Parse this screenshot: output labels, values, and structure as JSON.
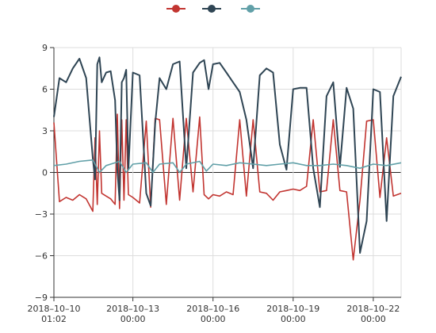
{
  "chart_data": {
    "type": "line",
    "title": "",
    "xlabel": "",
    "ylabel": "",
    "x_start": "2018-10-10 01:02",
    "x_end": "2018-10-23 01:00",
    "ylim": [
      -9,
      9
    ],
    "y_ticks": [
      -9,
      -6,
      -3,
      0,
      3,
      6,
      9
    ],
    "y_tick_labels": [
      "−9",
      "−6",
      "−3",
      "0",
      "3",
      "6",
      "9"
    ],
    "x_ticks": [
      {
        "value": "2018-10-10 01:02",
        "line1": "2018–10–10",
        "line2": "01:02"
      },
      {
        "value": "2018-10-13 00:00",
        "line1": "2018–10–13",
        "line2": "00:00"
      },
      {
        "value": "2018-10-16 00:00",
        "line1": "2018–10–16",
        "line2": "00:00"
      },
      {
        "value": "2018-10-19 00:00",
        "line1": "2018–10–19",
        "line2": "00:00"
      },
      {
        "value": "2018-10-22 00:00",
        "line1": "2018–10–22",
        "line2": "00:00"
      }
    ],
    "grid": true,
    "legend": "top-center",
    "series": [
      {
        "color": "#c23531",
        "x": [
          "2018-10-10 01:00",
          "2018-10-10 06:00",
          "2018-10-10 12:00",
          "2018-10-10 18:00",
          "2018-10-11 00:00",
          "2018-10-11 06:00",
          "2018-10-11 12:00",
          "2018-10-11 14:00",
          "2018-10-11 16:00",
          "2018-10-11 18:00",
          "2018-10-11 20:00",
          "2018-10-12 00:00",
          "2018-10-12 04:00",
          "2018-10-12 08:00",
          "2018-10-12 10:00",
          "2018-10-12 12:00",
          "2018-10-12 14:00",
          "2018-10-12 16:00",
          "2018-10-12 18:00",
          "2018-10-12 20:00",
          "2018-10-13 00:00",
          "2018-10-13 06:00",
          "2018-10-13 12:00",
          "2018-10-13 16:00",
          "2018-10-13 20:00",
          "2018-10-14 00:00",
          "2018-10-14 06:00",
          "2018-10-14 12:00",
          "2018-10-14 18:00",
          "2018-10-15 00:00",
          "2018-10-15 06:00",
          "2018-10-15 12:00",
          "2018-10-15 16:00",
          "2018-10-15 20:00",
          "2018-10-16 00:00",
          "2018-10-16 06:00",
          "2018-10-16 12:00",
          "2018-10-16 18:00",
          "2018-10-17 00:00",
          "2018-10-17 06:00",
          "2018-10-17 12:00",
          "2018-10-17 18:00",
          "2018-10-18 00:00",
          "2018-10-18 06:00",
          "2018-10-18 12:00",
          "2018-10-18 18:00",
          "2018-10-19 00:00",
          "2018-10-19 06:00",
          "2018-10-19 12:00",
          "2018-10-19 18:00",
          "2018-10-20 00:00",
          "2018-10-20 06:00",
          "2018-10-20 12:00",
          "2018-10-20 18:00",
          "2018-10-21 00:00",
          "2018-10-21 06:00",
          "2018-10-21 12:00",
          "2018-10-21 18:00",
          "2018-10-22 00:00",
          "2018-10-22 06:00",
          "2018-10-22 12:00",
          "2018-10-22 18:00",
          "2018-10-23 01:00"
        ],
        "y": [
          3.6,
          -2.1,
          -1.8,
          -2.0,
          -1.6,
          -1.9,
          -2.8,
          2.5,
          -2.3,
          3.0,
          -1.5,
          -1.7,
          -1.9,
          -2.3,
          4.2,
          -2.6,
          3.8,
          -2.0,
          3.8,
          -1.6,
          -1.8,
          -2.2,
          3.7,
          -2.5,
          3.9,
          3.8,
          -2.3,
          3.9,
          -2.0,
          3.9,
          -1.4,
          4.0,
          -1.6,
          -1.9,
          -1.6,
          -1.7,
          -1.4,
          -1.6,
          3.8,
          -1.7,
          3.8,
          -1.4,
          -1.5,
          -2.0,
          -1.4,
          -1.3,
          -1.2,
          -1.3,
          -1.0,
          3.8,
          -1.4,
          -1.3,
          3.8,
          -1.3,
          -1.4,
          -6.3,
          -2.0,
          3.7,
          3.8,
          -1.8,
          2.5,
          -1.7,
          -1.5
        ]
      },
      {
        "color": "#2f4554",
        "x": [
          "2018-10-10 01:00",
          "2018-10-10 06:00",
          "2018-10-10 12:00",
          "2018-10-10 18:00",
          "2018-10-11 00:00",
          "2018-10-11 06:00",
          "2018-10-11 12:00",
          "2018-10-11 14:00",
          "2018-10-11 16:00",
          "2018-10-11 18:00",
          "2018-10-11 20:00",
          "2018-10-12 00:00",
          "2018-10-12 04:00",
          "2018-10-12 08:00",
          "2018-10-12 10:00",
          "2018-10-12 12:00",
          "2018-10-12 14:00",
          "2018-10-12 16:00",
          "2018-10-12 18:00",
          "2018-10-12 20:00",
          "2018-10-13 00:00",
          "2018-10-13 06:00",
          "2018-10-13 12:00",
          "2018-10-13 16:00",
          "2018-10-13 20:00",
          "2018-10-14 00:00",
          "2018-10-14 06:00",
          "2018-10-14 12:00",
          "2018-10-14 18:00",
          "2018-10-15 00:00",
          "2018-10-15 06:00",
          "2018-10-15 12:00",
          "2018-10-15 16:00",
          "2018-10-15 20:00",
          "2018-10-16 00:00",
          "2018-10-16 06:00",
          "2018-10-16 12:00",
          "2018-10-16 18:00",
          "2018-10-17 00:00",
          "2018-10-17 06:00",
          "2018-10-17 12:00",
          "2018-10-17 18:00",
          "2018-10-18 00:00",
          "2018-10-18 06:00",
          "2018-10-18 12:00",
          "2018-10-18 18:00",
          "2018-10-19 00:00",
          "2018-10-19 06:00",
          "2018-10-19 12:00",
          "2018-10-19 18:00",
          "2018-10-20 00:00",
          "2018-10-20 06:00",
          "2018-10-20 12:00",
          "2018-10-20 18:00",
          "2018-10-21 00:00",
          "2018-10-21 06:00",
          "2018-10-21 12:00",
          "2018-10-21 18:00",
          "2018-10-22 00:00",
          "2018-10-22 06:00",
          "2018-10-22 12:00",
          "2018-10-22 18:00",
          "2018-10-23 01:00"
        ],
        "y": [
          4.0,
          6.8,
          6.5,
          7.5,
          8.2,
          6.8,
          1.0,
          -0.5,
          7.8,
          8.3,
          6.5,
          7.2,
          7.3,
          5.2,
          0.2,
          -2.0,
          6.5,
          6.8,
          7.4,
          0.2,
          7.2,
          7.0,
          -1.5,
          -2.4,
          3.5,
          6.8,
          6.0,
          7.8,
          8.0,
          0.3,
          7.2,
          7.9,
          8.1,
          6.0,
          7.8,
          7.9,
          7.2,
          6.5,
          5.8,
          3.8,
          0.3,
          7.0,
          7.5,
          7.2,
          2.0,
          0.2,
          6.0,
          6.1,
          6.1,
          0.3,
          -2.5,
          5.5,
          6.5,
          0.4,
          6.1,
          4.6,
          -5.8,
          -3.5,
          6.0,
          5.8,
          -3.5,
          5.5,
          6.9
        ]
      },
      {
        "color": "#61a0a8",
        "x": [
          "2018-10-10 01:00",
          "2018-10-10 12:00",
          "2018-10-11 00:00",
          "2018-10-11 12:00",
          "2018-10-11 18:00",
          "2018-10-12 00:00",
          "2018-10-12 12:00",
          "2018-10-12 18:00",
          "2018-10-13 00:00",
          "2018-10-13 12:00",
          "2018-10-13 18:00",
          "2018-10-14 00:00",
          "2018-10-14 12:00",
          "2018-10-14 18:00",
          "2018-10-15 00:00",
          "2018-10-15 12:00",
          "2018-10-15 18:00",
          "2018-10-16 00:00",
          "2018-10-16 12:00",
          "2018-10-17 00:00",
          "2018-10-17 12:00",
          "2018-10-18 00:00",
          "2018-10-18 12:00",
          "2018-10-19 00:00",
          "2018-10-19 12:00",
          "2018-10-20 00:00",
          "2018-10-20 12:00",
          "2018-10-21 00:00",
          "2018-10-21 12:00",
          "2018-10-22 00:00",
          "2018-10-22 12:00",
          "2018-10-23 01:00"
        ],
        "y": [
          0.5,
          0.6,
          0.8,
          0.9,
          0.0,
          0.5,
          0.8,
          0.0,
          0.6,
          0.7,
          0.0,
          0.6,
          0.7,
          0.0,
          0.6,
          0.8,
          0.1,
          0.6,
          0.5,
          0.7,
          0.6,
          0.5,
          0.6,
          0.7,
          0.5,
          0.5,
          0.6,
          0.5,
          0.3,
          0.6,
          0.5,
          0.7
        ]
      }
    ]
  }
}
